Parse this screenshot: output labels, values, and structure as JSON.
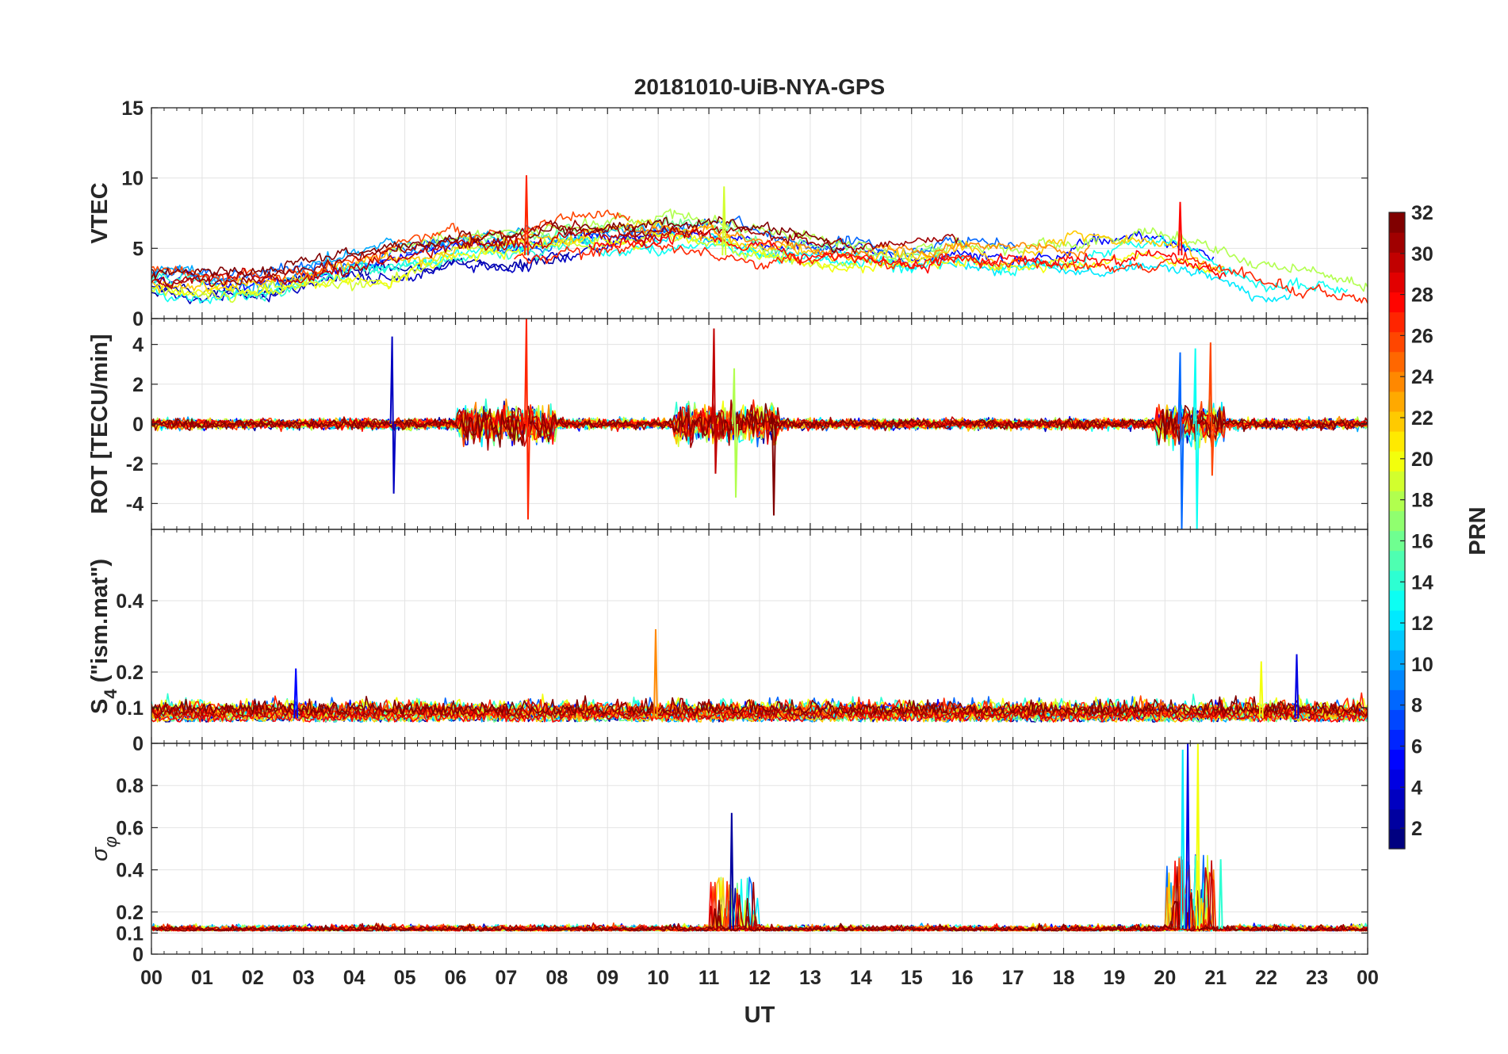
{
  "chart_data": {
    "type": "line",
    "title": "20181010-UiB-NYA-GPS",
    "xlabel": "UT",
    "x_tick_labels": [
      "00",
      "01",
      "02",
      "03",
      "04",
      "05",
      "06",
      "07",
      "08",
      "09",
      "10",
      "11",
      "12",
      "13",
      "14",
      "15",
      "16",
      "17",
      "18",
      "19",
      "20",
      "21",
      "22",
      "23",
      "00"
    ],
    "xlim_hours": [
      0,
      24
    ],
    "panels": [
      {
        "id": "vtec",
        "ylabel": "VTEC",
        "ylim": [
          0,
          15
        ],
        "y_ticks": [
          0,
          5,
          10,
          15
        ],
        "y_tick_labels": [
          "0",
          "5",
          "10",
          "15"
        ],
        "baseline_profile": {
          "hours": [
            0,
            1,
            2,
            3,
            4,
            5,
            6,
            7,
            8,
            9,
            10,
            11,
            12,
            13,
            14,
            15,
            16,
            17,
            18,
            19,
            20,
            21,
            22,
            23,
            24
          ],
          "values": [
            2.6,
            2.4,
            2.2,
            3.0,
            3.6,
            4.2,
            5.0,
            5.2,
            5.5,
            5.8,
            6.2,
            6.0,
            5.2,
            4.8,
            4.6,
            4.4,
            4.8,
            4.6,
            4.8,
            5.0,
            5.2,
            4.0,
            3.2,
            2.8,
            2.2
          ]
        },
        "notable_peaks": [
          {
            "hour": 7.4,
            "value": 10.2,
            "prn": 27
          },
          {
            "hour": 11.3,
            "value": 9.4,
            "prn": 19
          },
          {
            "hour": 20.3,
            "value": 8.3,
            "prn": 28
          }
        ]
      },
      {
        "id": "rot",
        "ylabel": "ROT [TECU/min]",
        "ylim": [
          -5.3,
          5.3
        ],
        "y_ticks": [
          -4,
          -2,
          0,
          2,
          4
        ],
        "y_tick_labels": [
          "-4",
          "-2",
          "0",
          "2",
          "4"
        ],
        "activity_bursts": [
          {
            "hour": 4.75,
            "max": 4.4,
            "min": -3.5,
            "prn": 3
          },
          {
            "hour": 7.4,
            "max": 5.3,
            "min": -4.8,
            "prn": 27
          },
          {
            "hour": 11.1,
            "max": 4.8,
            "min": -2.5,
            "prn": 30
          },
          {
            "hour": 11.5,
            "max": 2.8,
            "min": -3.7,
            "prn": 18
          },
          {
            "hour": 12.25,
            "max": 0.6,
            "min": -4.6,
            "prn": 32
          },
          {
            "hour": 20.3,
            "max": 3.6,
            "min": -5.3,
            "prn": 8
          },
          {
            "hour": 20.6,
            "max": 3.8,
            "min": -5.3,
            "prn": 13
          },
          {
            "hour": 20.9,
            "max": 4.1,
            "min": -2.6,
            "prn": 26
          }
        ]
      },
      {
        "id": "s4",
        "ylabel": "S",
        "ylabel_subscript": "4",
        "ylabel_suffix": " (\"ism.mat\")",
        "ylim": [
          0,
          0.6
        ],
        "y_ticks": [
          0,
          0.1,
          0.2,
          0.4
        ],
        "y_tick_labels": [
          "0",
          "0.1",
          "0.2",
          "0.4"
        ],
        "notable_peaks": [
          {
            "hour": 9.95,
            "value": 0.32,
            "prn": 24
          },
          {
            "hour": 22.6,
            "value": 0.25,
            "prn": 4
          },
          {
            "hour": 21.9,
            "value": 0.23,
            "prn": 20
          },
          {
            "hour": 2.85,
            "value": 0.21,
            "prn": 5
          }
        ]
      },
      {
        "id": "sigphi",
        "ylabel": "σ",
        "ylabel_subscript": "φ",
        "ylim": [
          0,
          1
        ],
        "y_ticks": [
          0,
          0.1,
          0.2,
          0.4,
          0.6,
          0.8
        ],
        "y_tick_labels": [
          "0",
          "0.1",
          "0.2",
          "0.4",
          "0.6",
          "0.8"
        ],
        "notable_peaks": [
          {
            "hour": 11.45,
            "value": 0.67,
            "prn": 2
          },
          {
            "hour": 20.35,
            "value": 0.97,
            "prn": 12
          },
          {
            "hour": 20.45,
            "value": 1.0,
            "prn": 4
          },
          {
            "hour": 20.65,
            "value": 1.0,
            "prn": 20
          },
          {
            "hour": 21.1,
            "value": 0.45,
            "prn": 14
          }
        ]
      }
    ],
    "colorbar": {
      "label": "PRN",
      "range": [
        1,
        32
      ],
      "tick_values": [
        2,
        4,
        6,
        8,
        10,
        12,
        14,
        16,
        18,
        20,
        22,
        24,
        26,
        28,
        30,
        32
      ],
      "tick_labels": [
        "2",
        "4",
        "6",
        "8",
        "10",
        "12",
        "14",
        "16",
        "18",
        "20",
        "22",
        "24",
        "26",
        "28",
        "30",
        "32"
      ],
      "colormap": "jet"
    }
  }
}
